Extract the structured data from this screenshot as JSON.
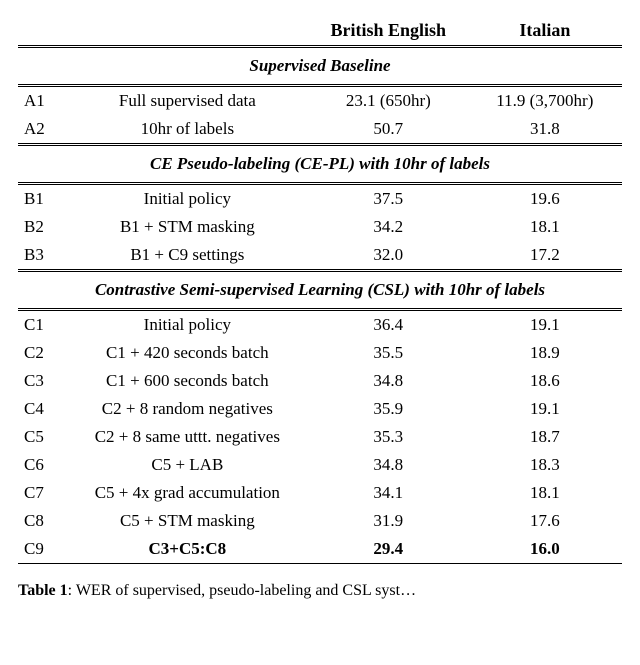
{
  "columns": {
    "id": "",
    "desc": "",
    "be": "British English",
    "it": "Italian"
  },
  "sections": {
    "supervised": {
      "title": "Supervised Baseline",
      "rows": [
        {
          "id": "A1",
          "desc": "Full supervised data",
          "be": "23.1 (650hr)",
          "it": "11.9 (3,700hr)"
        },
        {
          "id": "A2",
          "desc": "10hr of labels",
          "be": "50.7",
          "it": "31.8"
        }
      ]
    },
    "cepl": {
      "title": "CE Pseudo-labeling (CE-PL) with 10hr of labels",
      "rows": [
        {
          "id": "B1",
          "desc": "Initial policy",
          "be": "37.5",
          "it": "19.6"
        },
        {
          "id": "B2",
          "desc": "B1 + STM masking",
          "be": "34.2",
          "it": "18.1"
        },
        {
          "id": "B3",
          "desc": "B1 + C9 settings",
          "be": "32.0",
          "it": "17.2"
        }
      ]
    },
    "csl": {
      "title": "Contrastive Semi-supervised Learning (CSL) with 10hr of labels",
      "rows": [
        {
          "id": "C1",
          "desc": "Initial policy",
          "be": "36.4",
          "it": "19.1",
          "bold": false
        },
        {
          "id": "C2",
          "desc": "C1 + 420 seconds batch",
          "be": "35.5",
          "it": "18.9",
          "bold": false
        },
        {
          "id": "C3",
          "desc": "C1 + 600 seconds batch",
          "be": "34.8",
          "it": "18.6",
          "bold": false
        },
        {
          "id": "C4",
          "desc": "C2 + 8 random negatives",
          "be": "35.9",
          "it": "19.1",
          "bold": false
        },
        {
          "id": "C5",
          "desc": "C2 + 8 same uttt. negatives",
          "be": "35.3",
          "it": "18.7",
          "bold": false
        },
        {
          "id": "C6",
          "desc": "C5 + LAB",
          "be": "34.8",
          "it": "18.3",
          "bold": false
        },
        {
          "id": "C7",
          "desc": "C5 + 4x grad accumulation",
          "be": "34.1",
          "it": "18.1",
          "bold": false
        },
        {
          "id": "C8",
          "desc": "C5 + STM masking",
          "be": "31.9",
          "it": "17.6",
          "bold": false
        },
        {
          "id": "C9",
          "desc": "C3+C5:C8",
          "be": "29.4",
          "it": "16.0",
          "bold": true
        }
      ]
    }
  },
  "caption_label": "Table 1",
  "caption_suffix": ": WER of supervised, pseudo-labeling and CSL syst…"
}
